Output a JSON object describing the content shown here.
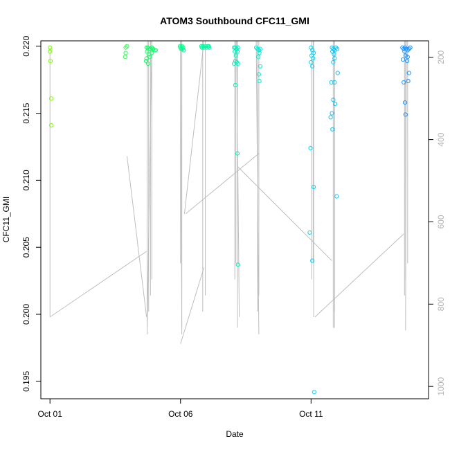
{
  "chart_data": {
    "type": "scatter",
    "title": "ATOM3 Southbound CFC11_GMI",
    "xlabel": "Date",
    "ylabel": "CFC11_GMI",
    "x_ticks": [
      {
        "label": "Oct 01",
        "value": 0
      },
      {
        "label": "Oct 06",
        "value": 5
      },
      {
        "label": "Oct 11",
        "value": 10
      }
    ],
    "xlim": [
      -0.35,
      14.5
    ],
    "ylim": [
      0.1937,
      0.2204
    ],
    "y_ticks": [
      0.195,
      0.2,
      0.205,
      0.21,
      0.215,
      0.22
    ],
    "y_tick_labels": [
      "0.195",
      "0.200",
      "0.205",
      "0.210",
      "0.215",
      "0.220"
    ],
    "y2_ticks": [
      200,
      400,
      600,
      800,
      1000
    ],
    "y2_tick_labels": [
      "200",
      "400",
      "600",
      "800",
      "1000"
    ],
    "y2lim": [
      1030,
      160
    ],
    "grid": false,
    "point_color_ramp": [
      "#7CFC00",
      "#00FF7F",
      "#00E5EE",
      "#1E90FF"
    ],
    "pressure_line_color": "#bebebe",
    "points": [
      [
        0.0,
        0.2199
      ],
      [
        0.0,
        0.2196
      ],
      [
        0.02,
        0.2189
      ],
      [
        0.05,
        0.2161
      ],
      [
        0.05,
        0.2141
      ],
      [
        2.9,
        0.2199
      ],
      [
        2.95,
        0.22
      ],
      [
        2.9,
        0.2195
      ],
      [
        2.88,
        0.2192
      ],
      [
        3.7,
        0.2199
      ],
      [
        3.75,
        0.2199
      ],
      [
        3.8,
        0.2198
      ],
      [
        3.85,
        0.2198
      ],
      [
        3.9,
        0.2199
      ],
      [
        3.95,
        0.2198
      ],
      [
        4.0,
        0.2197
      ],
      [
        4.05,
        0.2197
      ],
      [
        3.72,
        0.2196
      ],
      [
        3.78,
        0.2194
      ],
      [
        3.7,
        0.2191
      ],
      [
        3.68,
        0.2189
      ],
      [
        3.82,
        0.2192
      ],
      [
        3.9,
        0.2195
      ],
      [
        3.76,
        0.2187
      ],
      [
        4.98,
        0.22
      ],
      [
        5.0,
        0.2199
      ],
      [
        5.05,
        0.22
      ],
      [
        5.1,
        0.2199
      ],
      [
        5.08,
        0.2198
      ],
      [
        5.02,
        0.2198
      ],
      [
        5.12,
        0.2197
      ],
      [
        5.8,
        0.22
      ],
      [
        5.85,
        0.22
      ],
      [
        5.9,
        0.2199
      ],
      [
        5.95,
        0.22
      ],
      [
        6.0,
        0.2199
      ],
      [
        6.05,
        0.22
      ],
      [
        6.1,
        0.2199
      ],
      [
        5.82,
        0.2199
      ],
      [
        6.08,
        0.22
      ],
      [
        7.05,
        0.2199
      ],
      [
        7.1,
        0.2199
      ],
      [
        7.15,
        0.2198
      ],
      [
        7.2,
        0.2199
      ],
      [
        7.08,
        0.2196
      ],
      [
        7.12,
        0.2193
      ],
      [
        7.18,
        0.2196
      ],
      [
        7.1,
        0.2189
      ],
      [
        7.15,
        0.2188
      ],
      [
        7.2,
        0.2187
      ],
      [
        7.05,
        0.2187
      ],
      [
        7.1,
        0.2171
      ],
      [
        7.18,
        0.212
      ],
      [
        7.2,
        0.2037
      ],
      [
        7.9,
        0.2199
      ],
      [
        7.95,
        0.2198
      ],
      [
        8.0,
        0.2197
      ],
      [
        8.05,
        0.2198
      ],
      [
        8.02,
        0.2195
      ],
      [
        7.98,
        0.2192
      ],
      [
        8.05,
        0.2185
      ],
      [
        8.0,
        0.2179
      ],
      [
        8.02,
        0.2174
      ],
      [
        10.0,
        0.2199
      ],
      [
        10.05,
        0.2197
      ],
      [
        10.1,
        0.2195
      ],
      [
        10.02,
        0.2193
      ],
      [
        10.08,
        0.2191
      ],
      [
        10.0,
        0.2188
      ],
      [
        10.05,
        0.2185
      ],
      [
        9.98,
        0.2124
      ],
      [
        10.1,
        0.2095
      ],
      [
        9.95,
        0.2061
      ],
      [
        10.05,
        0.204
      ],
      [
        10.12,
        0.1942
      ],
      [
        10.8,
        0.2199
      ],
      [
        10.85,
        0.2198
      ],
      [
        10.9,
        0.2197
      ],
      [
        10.95,
        0.2199
      ],
      [
        11.0,
        0.2198
      ],
      [
        10.82,
        0.2196
      ],
      [
        10.88,
        0.2194
      ],
      [
        10.9,
        0.2191
      ],
      [
        10.85,
        0.2188
      ],
      [
        11.02,
        0.218
      ],
      [
        10.78,
        0.2173
      ],
      [
        10.9,
        0.2173
      ],
      [
        10.92,
        0.2157
      ],
      [
        10.85,
        0.216
      ],
      [
        10.8,
        0.215
      ],
      [
        10.75,
        0.2147
      ],
      [
        10.82,
        0.2138
      ],
      [
        10.98,
        0.2088
      ],
      [
        13.5,
        0.2199
      ],
      [
        13.55,
        0.2198
      ],
      [
        13.6,
        0.2199
      ],
      [
        13.65,
        0.2198
      ],
      [
        13.7,
        0.2197
      ],
      [
        13.75,
        0.2198
      ],
      [
        13.8,
        0.2199
      ],
      [
        13.58,
        0.2196
      ],
      [
        13.62,
        0.2193
      ],
      [
        13.52,
        0.219
      ],
      [
        13.7,
        0.2192
      ],
      [
        13.68,
        0.2189
      ],
      [
        13.75,
        0.218
      ],
      [
        13.55,
        0.2173
      ],
      [
        13.72,
        0.2174
      ],
      [
        13.6,
        0.2158
      ],
      [
        13.62,
        0.2149
      ]
    ]
  }
}
